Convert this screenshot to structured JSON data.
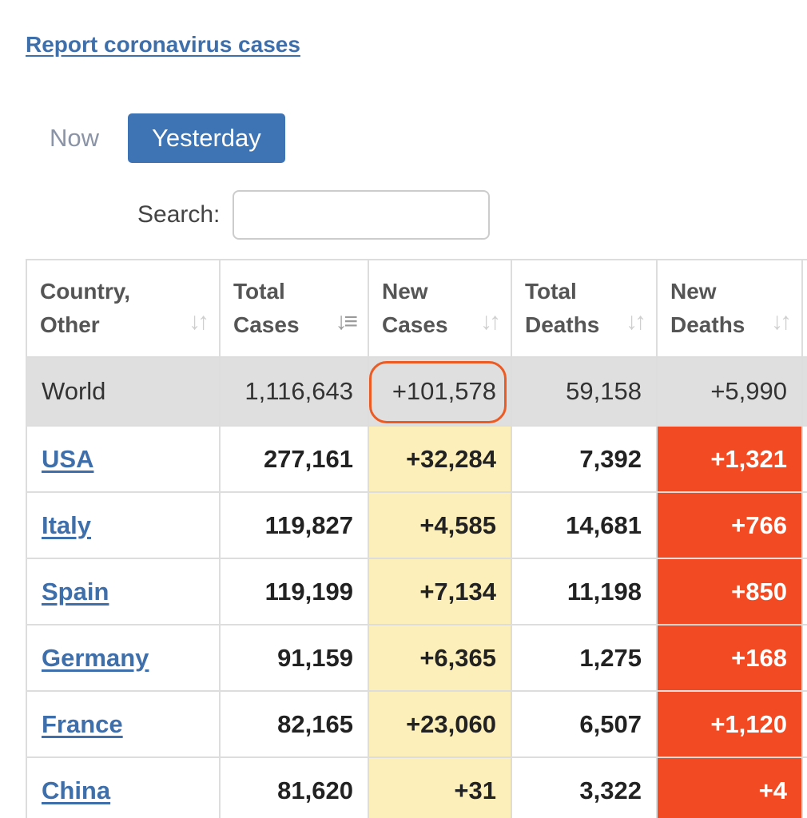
{
  "header": {
    "report_link": "Report coronavirus cases"
  },
  "tabs": [
    {
      "label": "Now",
      "active": false
    },
    {
      "label": "Yesterday",
      "active": true
    }
  ],
  "search": {
    "label": "Search:",
    "value": "",
    "placeholder": ""
  },
  "table": {
    "columns": [
      {
        "line1": "Country,",
        "line2": "Other",
        "sort_icon": "sort-icon"
      },
      {
        "line1": "Total",
        "line2": "Cases",
        "sort_icon": "sort-desc-icon"
      },
      {
        "line1": "New",
        "line2": "Cases",
        "sort_icon": "sort-icon"
      },
      {
        "line1": "Total",
        "line2": "Deaths",
        "sort_icon": "sort-icon"
      },
      {
        "line1": "New",
        "line2": "Deaths",
        "sort_icon": "sort-icon"
      }
    ],
    "world": {
      "country": "World",
      "total_cases": "1,116,643",
      "new_cases": "+101,578",
      "total_deaths": "59,158",
      "new_deaths": "+5,990"
    },
    "rows": [
      {
        "country": "USA",
        "total_cases": "277,161",
        "new_cases": "+32,284",
        "total_deaths": "7,392",
        "new_deaths": "+1,321"
      },
      {
        "country": "Italy",
        "total_cases": "119,827",
        "new_cases": "+4,585",
        "total_deaths": "14,681",
        "new_deaths": "+766"
      },
      {
        "country": "Spain",
        "total_cases": "119,199",
        "new_cases": "+7,134",
        "total_deaths": "11,198",
        "new_deaths": "+850"
      },
      {
        "country": "Germany",
        "total_cases": "91,159",
        "new_cases": "+6,365",
        "total_deaths": "1,275",
        "new_deaths": "+168"
      },
      {
        "country": "France",
        "total_cases": "82,165",
        "new_cases": "+23,060",
        "total_deaths": "6,507",
        "new_deaths": "+1,120"
      },
      {
        "country": "China",
        "total_cases": "81,620",
        "new_cases": "+31",
        "total_deaths": "3,322",
        "new_deaths": "+4"
      }
    ]
  },
  "colors": {
    "link": "#3f6fab",
    "active_tab": "#3e73b4",
    "new_cases_bg": "#fdefba",
    "new_deaths_bg": "#f24a22",
    "world_row_bg": "#dfdfdf",
    "annotation_circle": "#ec5b23"
  }
}
